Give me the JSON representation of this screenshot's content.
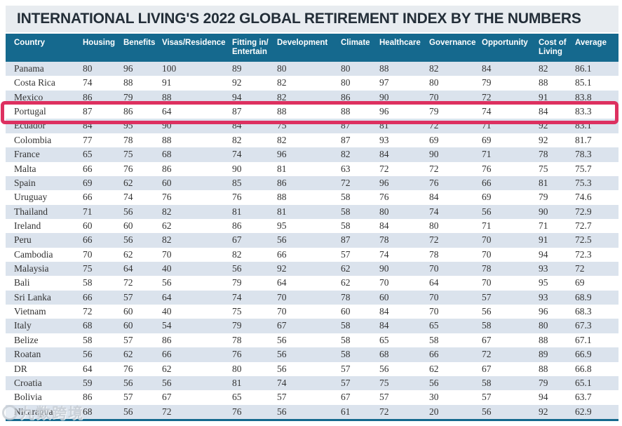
{
  "title": "INTERNATIONAL LIVING'S 2022 GLOBAL RETIREMENT INDEX BY THE NUMBERS",
  "colors": {
    "header_bg": "#15698e",
    "row_stripe": "#dbe3ed",
    "title_bar_bg": "#e8ecf0",
    "highlight_border": "#dd3060"
  },
  "watermark": {
    "text": "九数跨境",
    "logo": "ring-logo-icon"
  },
  "highlight": {
    "country": "Portugal",
    "row_index": 3
  },
  "chart_data": {
    "type": "table",
    "title": "INTERNATIONAL LIVING'S 2022 GLOBAL RETIREMENT INDEX BY THE NUMBERS",
    "columns": [
      "Country",
      "Housing",
      "Benefits",
      "Visas/Residence",
      "Fitting in/\nEntertain",
      "Development",
      "Climate",
      "Healthcare",
      "Governance",
      "Opportunity",
      "Cost of\nLiving",
      "Average"
    ],
    "rows": [
      {
        "country": "Panama",
        "values": [
          80,
          96,
          100,
          89,
          80,
          80,
          88,
          82,
          84,
          82,
          86.1
        ]
      },
      {
        "country": "Costa Rica",
        "values": [
          74,
          88,
          91,
          92,
          82,
          80,
          97,
          80,
          79,
          88,
          85.1
        ]
      },
      {
        "country": "Mexico",
        "values": [
          86,
          79,
          88,
          94,
          82,
          86,
          90,
          70,
          72,
          91,
          83.8
        ]
      },
      {
        "country": "Portugal",
        "values": [
          87,
          86,
          64,
          87,
          88,
          88,
          96,
          79,
          74,
          84,
          83.3
        ]
      },
      {
        "country": "Ecuador",
        "values": [
          84,
          95,
          90,
          84,
          75,
          87,
          81,
          72,
          71,
          92,
          83.1
        ]
      },
      {
        "country": "Colombia",
        "values": [
          77,
          78,
          88,
          82,
          82,
          87,
          93,
          69,
          69,
          92,
          81.7
        ]
      },
      {
        "country": "France",
        "values": [
          65,
          75,
          68,
          74,
          96,
          82,
          84,
          90,
          71,
          78,
          78.3
        ]
      },
      {
        "country": "Malta",
        "values": [
          66,
          76,
          86,
          90,
          81,
          63,
          72,
          72,
          76,
          75,
          75.7
        ]
      },
      {
        "country": "Spain",
        "values": [
          69,
          62,
          60,
          85,
          86,
          72,
          96,
          76,
          66,
          81,
          75.3
        ]
      },
      {
        "country": "Uruguay",
        "values": [
          66,
          74,
          76,
          76,
          88,
          58,
          76,
          84,
          69,
          79,
          74.6
        ]
      },
      {
        "country": "Thailand",
        "values": [
          71,
          56,
          82,
          81,
          81,
          58,
          80,
          74,
          56,
          90,
          72.9
        ]
      },
      {
        "country": "Ireland",
        "values": [
          60,
          60,
          62,
          86,
          95,
          58,
          84,
          80,
          71,
          71,
          72.7
        ]
      },
      {
        "country": "Peru",
        "values": [
          66,
          56,
          82,
          67,
          56,
          87,
          78,
          72,
          70,
          91,
          72.5
        ]
      },
      {
        "country": "Cambodia",
        "values": [
          70,
          62,
          70,
          82,
          66,
          57,
          74,
          78,
          70,
          94,
          72.3
        ]
      },
      {
        "country": "Malaysia",
        "values": [
          75,
          64,
          40,
          56,
          92,
          62,
          90,
          70,
          78,
          93,
          72
        ]
      },
      {
        "country": "Bali",
        "values": [
          58,
          72,
          56,
          79,
          64,
          62,
          70,
          64,
          70,
          95,
          69
        ]
      },
      {
        "country": "Sri Lanka",
        "values": [
          66,
          57,
          64,
          74,
          70,
          78,
          60,
          70,
          57,
          93,
          68.9
        ]
      },
      {
        "country": "Vietnam",
        "values": [
          72,
          60,
          40,
          75,
          70,
          60,
          84,
          70,
          56,
          96,
          68.3
        ]
      },
      {
        "country": "Italy",
        "values": [
          68,
          60,
          54,
          79,
          67,
          58,
          84,
          65,
          58,
          80,
          67.3
        ]
      },
      {
        "country": "Belize",
        "values": [
          58,
          57,
          86,
          78,
          56,
          58,
          65,
          58,
          67,
          88,
          67.1
        ]
      },
      {
        "country": "Roatan",
        "values": [
          56,
          62,
          66,
          76,
          56,
          58,
          68,
          66,
          72,
          89,
          66.9
        ]
      },
      {
        "country": "DR",
        "values": [
          64,
          76,
          62,
          80,
          56,
          57,
          56,
          62,
          67,
          88,
          66.8
        ]
      },
      {
        "country": "Croatia",
        "values": [
          59,
          56,
          56,
          81,
          74,
          57,
          75,
          56,
          58,
          79,
          65.1
        ]
      },
      {
        "country": "Bolivia",
        "values": [
          86,
          57,
          67,
          65,
          57,
          67,
          57,
          30,
          57,
          94,
          63.7
        ]
      },
      {
        "country": "Nicaragua",
        "values": [
          68,
          56,
          72,
          76,
          56,
          61,
          72,
          20,
          56,
          92,
          62.9
        ]
      }
    ]
  }
}
